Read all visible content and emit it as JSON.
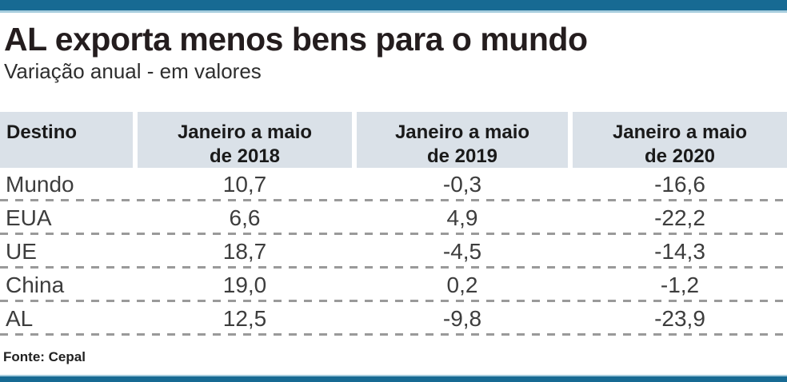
{
  "title": "AL exporta menos bens para o mundo",
  "subtitle": "Variação anual - em valores",
  "source": "Fonte: Cepal",
  "colors": {
    "top_bar": "#176a93",
    "top_bar_light": "#a7cdde",
    "header_bg": "#dae1e8",
    "dash": "#9a9a9a",
    "title_text": "#241d1e",
    "body_text": "#3d3d3d"
  },
  "table": {
    "headers": [
      "Destino",
      "Janeiro a maio\nde 2018",
      "Janeiro a maio\nde 2019",
      "Janeiro a maio\nde 2020"
    ],
    "rows": [
      {
        "destino": "Mundo",
        "v2018": "10,7",
        "v2019": "-0,3",
        "v2020": "-16,6"
      },
      {
        "destino": "EUA",
        "v2018": "6,6",
        "v2019": "4,9",
        "v2020": "-22,2"
      },
      {
        "destino": "UE",
        "v2018": "18,7",
        "v2019": "-4,5",
        "v2020": "-14,3"
      },
      {
        "destino": "China",
        "v2018": "19,0",
        "v2019": "0,2",
        "v2020": "-1,2"
      },
      {
        "destino": "AL",
        "v2018": "12,5",
        "v2019": "-9,8",
        "v2020": "-23,9"
      }
    ]
  },
  "chart_data": {
    "type": "table",
    "title": "AL exporta menos bens para o mundo",
    "subtitle": "Variação anual - em valores",
    "columns": [
      "Destino",
      "Janeiro a maio de 2018",
      "Janeiro a maio de 2019",
      "Janeiro a maio de 2020"
    ],
    "rows": [
      [
        "Mundo",
        10.7,
        -0.3,
        -16.6
      ],
      [
        "EUA",
        6.6,
        4.9,
        -22.2
      ],
      [
        "UE",
        18.7,
        -4.5,
        -14.3
      ],
      [
        "China",
        19.0,
        0.2,
        -1.2
      ],
      [
        "AL",
        12.5,
        -9.8,
        -23.9
      ]
    ],
    "decimal_separator": ",",
    "source": "Fonte: Cepal"
  }
}
